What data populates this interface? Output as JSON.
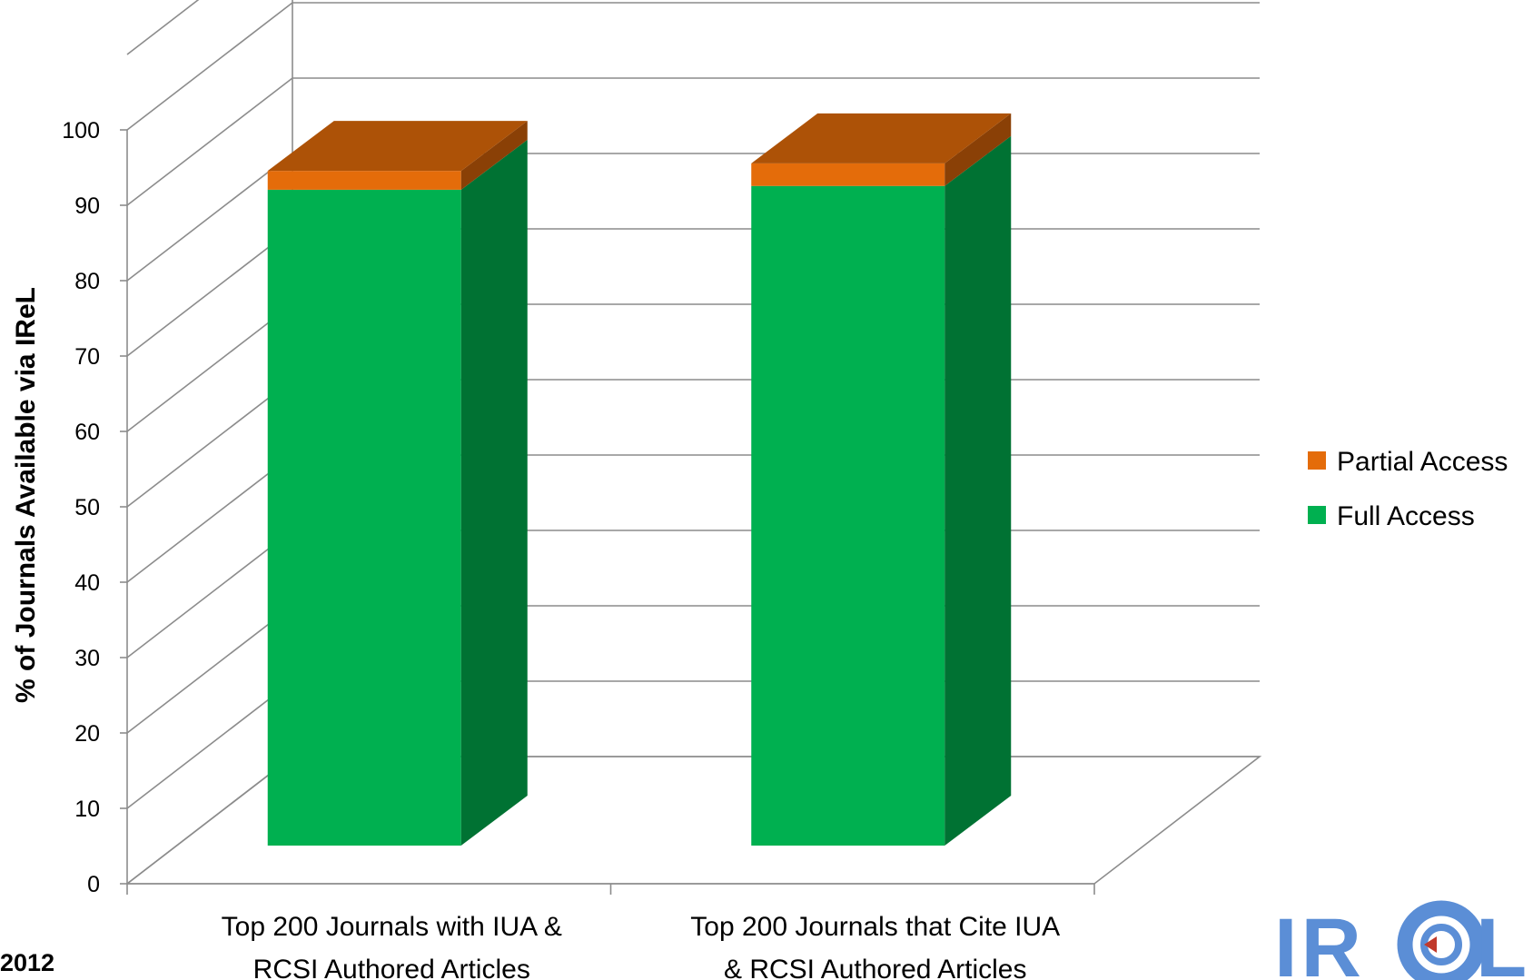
{
  "chart_data": {
    "type": "bar",
    "stacked": true,
    "three_d": true,
    "categories": [
      "Top 200 Journals with IUA & RCSI Authored Articles",
      "Top 200 Journals that Cite IUA & RCSI Authored Articles"
    ],
    "category_lines": [
      [
        "Top 200 Journals with IUA &",
        "RCSI Authored Articles"
      ],
      [
        "Top 200 Journals that Cite IUA",
        "& RCSI Authored Articles"
      ]
    ],
    "series": [
      {
        "name": "Full Access",
        "values": [
          87,
          87.5
        ],
        "color": "#00b050",
        "side_color": "#007233"
      },
      {
        "name": "Partial Access",
        "values": [
          2.5,
          3
        ],
        "color": "#e46c0a",
        "top_color": "#ad5207",
        "side_color": "#8a4006"
      }
    ],
    "ylabel": "% of Journals Available via IReL",
    "xlabel": "",
    "ylim": [
      0,
      100
    ],
    "yticks": [
      0,
      10,
      20,
      30,
      40,
      50,
      60,
      70,
      80,
      90,
      100
    ],
    "grid": true,
    "legend_position": "right"
  },
  "footnote": "2012",
  "logo": {
    "text_left": "IR",
    "text_right": "L",
    "color": "#5b8ed6"
  }
}
